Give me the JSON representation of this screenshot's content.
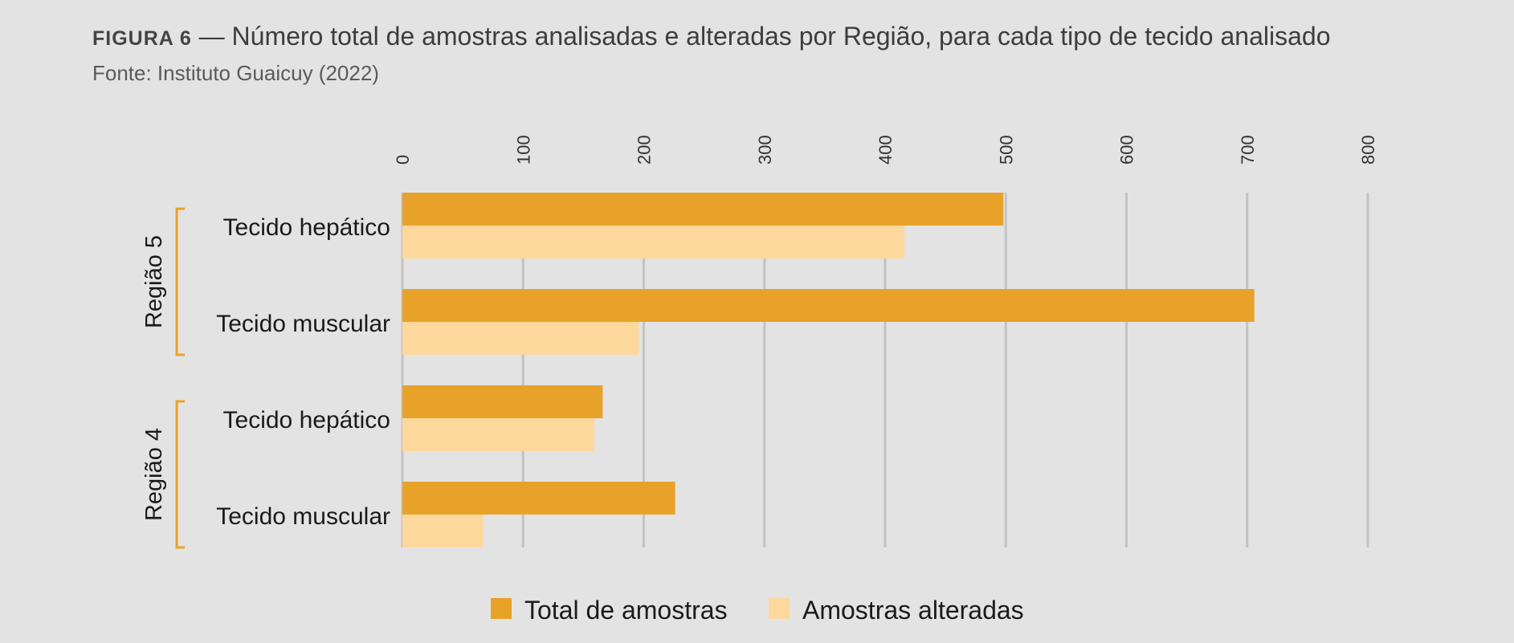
{
  "figure": {
    "label": "FIGURA 6",
    "separator": " — ",
    "title_text": "Número total de amostras analisadas e alteradas por Região, para cada tipo de tecido analisado",
    "source": "Fonte: Instituto Guaicuy (2022)"
  },
  "chart_data": {
    "type": "bar",
    "orientation": "horizontal",
    "title": "Número total de amostras analisadas e alteradas por Região, para cada tipo de tecido analisado",
    "xlim": [
      0,
      800
    ],
    "xticks": [
      0,
      100,
      200,
      300,
      400,
      500,
      600,
      700,
      800
    ],
    "x_tick_labels": [
      "0",
      "100",
      "200",
      "300",
      "400",
      "500",
      "600",
      "700",
      "800"
    ],
    "x_axis_position": "top",
    "grid": true,
    "legend_position": "bottom",
    "groups": [
      {
        "name": "Região 5",
        "categories": [
          "Tecido hepático",
          "Tecido muscular"
        ]
      },
      {
        "name": "Região 4",
        "categories": [
          "Tecido hepático",
          "Tecido muscular"
        ]
      }
    ],
    "series": [
      {
        "name": "Total de amostras",
        "color": "#e8a22a",
        "values": [
          498,
          706,
          166,
          226
        ]
      },
      {
        "name": "Amostras alteradas",
        "color": "#fdd89c",
        "values": [
          416,
          196,
          159,
          67
        ]
      }
    ],
    "bracket_color": "#e8a22a",
    "gridline_color": "#c3c3c3"
  }
}
